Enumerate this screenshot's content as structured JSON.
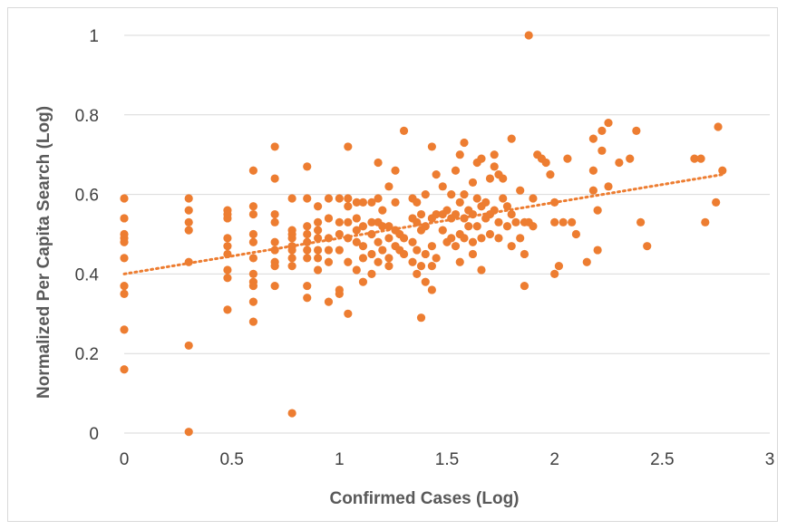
{
  "chart_data": {
    "type": "scatter",
    "title": "",
    "xlabel": "Confirmed Cases (Log)",
    "ylabel": "Normalized Per Capita Search (Log)",
    "xlim": [
      0,
      3
    ],
    "ylim": [
      0,
      1
    ],
    "x_ticks": [
      "0",
      "0.5",
      "1",
      "1.5",
      "2",
      "2.5",
      "3"
    ],
    "y_ticks": [
      "0",
      "0.2",
      "0.4",
      "0.6",
      "0.8",
      "1"
    ],
    "grid": "horizontal",
    "legend": "none",
    "marker_color": "#ED7D31",
    "trendline": {
      "type": "linear",
      "style": "dotted",
      "color": "#ED7D31",
      "start": [
        0,
        0.4
      ],
      "end": [
        2.78,
        0.65
      ]
    },
    "points": [
      [
        0,
        0.59
      ],
      [
        0,
        0.54
      ],
      [
        0,
        0.5
      ],
      [
        0,
        0.49
      ],
      [
        0,
        0.48
      ],
      [
        0,
        0.44
      ],
      [
        0,
        0.37
      ],
      [
        0,
        0.35
      ],
      [
        0,
        0.26
      ],
      [
        0,
        0.16
      ],
      [
        0.3,
        0.59
      ],
      [
        0.3,
        0.56
      ],
      [
        0.3,
        0.53
      ],
      [
        0.3,
        0.51
      ],
      [
        0.3,
        0.43
      ],
      [
        0.3,
        0.22
      ],
      [
        0.3,
        0.003
      ],
      [
        0.48,
        0.56
      ],
      [
        0.48,
        0.55
      ],
      [
        0.48,
        0.54
      ],
      [
        0.48,
        0.49
      ],
      [
        0.48,
        0.47
      ],
      [
        0.48,
        0.45
      ],
      [
        0.48,
        0.41
      ],
      [
        0.48,
        0.39
      ],
      [
        0.48,
        0.31
      ],
      [
        0.6,
        0.66
      ],
      [
        0.6,
        0.57
      ],
      [
        0.6,
        0.55
      ],
      [
        0.6,
        0.5
      ],
      [
        0.6,
        0.48
      ],
      [
        0.6,
        0.44
      ],
      [
        0.6,
        0.4
      ],
      [
        0.6,
        0.38
      ],
      [
        0.6,
        0.37
      ],
      [
        0.6,
        0.33
      ],
      [
        0.6,
        0.28
      ],
      [
        0.7,
        0.72
      ],
      [
        0.7,
        0.64
      ],
      [
        0.7,
        0.55
      ],
      [
        0.7,
        0.53
      ],
      [
        0.7,
        0.48
      ],
      [
        0.7,
        0.46
      ],
      [
        0.7,
        0.43
      ],
      [
        0.7,
        0.42
      ],
      [
        0.7,
        0.37
      ],
      [
        0.78,
        0.59
      ],
      [
        0.78,
        0.51
      ],
      [
        0.78,
        0.5
      ],
      [
        0.78,
        0.49
      ],
      [
        0.78,
        0.47
      ],
      [
        0.78,
        0.46
      ],
      [
        0.78,
        0.44
      ],
      [
        0.78,
        0.42
      ],
      [
        0.78,
        0.05
      ],
      [
        0.85,
        0.67
      ],
      [
        0.85,
        0.59
      ],
      [
        0.85,
        0.52
      ],
      [
        0.85,
        0.5
      ],
      [
        0.85,
        0.48
      ],
      [
        0.85,
        0.46
      ],
      [
        0.85,
        0.44
      ],
      [
        0.85,
        0.37
      ],
      [
        0.85,
        0.34
      ],
      [
        0.9,
        0.57
      ],
      [
        0.9,
        0.53
      ],
      [
        0.9,
        0.51
      ],
      [
        0.9,
        0.49
      ],
      [
        0.9,
        0.46
      ],
      [
        0.9,
        0.44
      ],
      [
        0.9,
        0.41
      ],
      [
        0.95,
        0.59
      ],
      [
        0.95,
        0.54
      ],
      [
        0.95,
        0.49
      ],
      [
        0.95,
        0.46
      ],
      [
        0.95,
        0.43
      ],
      [
        0.95,
        0.33
      ],
      [
        1.0,
        0.59
      ],
      [
        1.0,
        0.53
      ],
      [
        1.0,
        0.5
      ],
      [
        1.0,
        0.46
      ],
      [
        1.0,
        0.36
      ],
      [
        1.0,
        0.35
      ],
      [
        1.04,
        0.72
      ],
      [
        1.04,
        0.59
      ],
      [
        1.04,
        0.57
      ],
      [
        1.04,
        0.53
      ],
      [
        1.04,
        0.49
      ],
      [
        1.04,
        0.43
      ],
      [
        1.04,
        0.3
      ],
      [
        1.08,
        0.58
      ],
      [
        1.08,
        0.54
      ],
      [
        1.08,
        0.51
      ],
      [
        1.08,
        0.48
      ],
      [
        1.08,
        0.41
      ],
      [
        1.11,
        0.58
      ],
      [
        1.11,
        0.52
      ],
      [
        1.11,
        0.47
      ],
      [
        1.11,
        0.44
      ],
      [
        1.11,
        0.38
      ],
      [
        1.15,
        0.58
      ],
      [
        1.15,
        0.53
      ],
      [
        1.15,
        0.5
      ],
      [
        1.15,
        0.45
      ],
      [
        1.15,
        0.4
      ],
      [
        1.18,
        0.68
      ],
      [
        1.18,
        0.59
      ],
      [
        1.18,
        0.53
      ],
      [
        1.18,
        0.48
      ],
      [
        1.18,
        0.43
      ],
      [
        1.2,
        0.56
      ],
      [
        1.2,
        0.52
      ],
      [
        1.2,
        0.46
      ],
      [
        1.23,
        0.62
      ],
      [
        1.23,
        0.52
      ],
      [
        1.23,
        0.49
      ],
      [
        1.23,
        0.44
      ],
      [
        1.23,
        0.42
      ],
      [
        1.26,
        0.66
      ],
      [
        1.26,
        0.58
      ],
      [
        1.26,
        0.51
      ],
      [
        1.26,
        0.47
      ],
      [
        1.28,
        0.5
      ],
      [
        1.28,
        0.46
      ],
      [
        1.3,
        0.76
      ],
      [
        1.3,
        0.49
      ],
      [
        1.3,
        0.45
      ],
      [
        1.34,
        0.59
      ],
      [
        1.34,
        0.54
      ],
      [
        1.34,
        0.48
      ],
      [
        1.34,
        0.43
      ],
      [
        1.36,
        0.58
      ],
      [
        1.36,
        0.53
      ],
      [
        1.36,
        0.46
      ],
      [
        1.36,
        0.4
      ],
      [
        1.38,
        0.55
      ],
      [
        1.38,
        0.51
      ],
      [
        1.38,
        0.42
      ],
      [
        1.38,
        0.29
      ],
      [
        1.4,
        0.6
      ],
      [
        1.4,
        0.52
      ],
      [
        1.4,
        0.45
      ],
      [
        1.4,
        0.38
      ],
      [
        1.43,
        0.72
      ],
      [
        1.43,
        0.54
      ],
      [
        1.43,
        0.47
      ],
      [
        1.43,
        0.42
      ],
      [
        1.43,
        0.36
      ],
      [
        1.45,
        0.65
      ],
      [
        1.45,
        0.55
      ],
      [
        1.45,
        0.44
      ],
      [
        1.48,
        0.62
      ],
      [
        1.48,
        0.55
      ],
      [
        1.48,
        0.51
      ],
      [
        1.5,
        0.56
      ],
      [
        1.5,
        0.48
      ],
      [
        1.52,
        0.6
      ],
      [
        1.52,
        0.54
      ],
      [
        1.52,
        0.49
      ],
      [
        1.54,
        0.66
      ],
      [
        1.54,
        0.55
      ],
      [
        1.54,
        0.47
      ],
      [
        1.56,
        0.7
      ],
      [
        1.56,
        0.58
      ],
      [
        1.56,
        0.5
      ],
      [
        1.56,
        0.43
      ],
      [
        1.58,
        0.73
      ],
      [
        1.58,
        0.6
      ],
      [
        1.58,
        0.54
      ],
      [
        1.58,
        0.49
      ],
      [
        1.6,
        0.56
      ],
      [
        1.6,
        0.52
      ],
      [
        1.62,
        0.63
      ],
      [
        1.62,
        0.55
      ],
      [
        1.62,
        0.48
      ],
      [
        1.62,
        0.45
      ],
      [
        1.64,
        0.68
      ],
      [
        1.64,
        0.59
      ],
      [
        1.64,
        0.52
      ],
      [
        1.66,
        0.69
      ],
      [
        1.66,
        0.57
      ],
      [
        1.66,
        0.49
      ],
      [
        1.66,
        0.41
      ],
      [
        1.68,
        0.58
      ],
      [
        1.68,
        0.54
      ],
      [
        1.7,
        0.64
      ],
      [
        1.7,
        0.55
      ],
      [
        1.7,
        0.5
      ],
      [
        1.72,
        0.7
      ],
      [
        1.72,
        0.67
      ],
      [
        1.72,
        0.56
      ],
      [
        1.74,
        0.65
      ],
      [
        1.74,
        0.53
      ],
      [
        1.74,
        0.49
      ],
      [
        1.76,
        0.64
      ],
      [
        1.76,
        0.59
      ],
      [
        1.78,
        0.57
      ],
      [
        1.78,
        0.52
      ],
      [
        1.8,
        0.74
      ],
      [
        1.8,
        0.55
      ],
      [
        1.8,
        0.47
      ],
      [
        1.82,
        0.53
      ],
      [
        1.84,
        0.61
      ],
      [
        1.84,
        0.49
      ],
      [
        1.86,
        0.53
      ],
      [
        1.86,
        0.45
      ],
      [
        1.86,
        0.37
      ],
      [
        1.88,
        1.0
      ],
      [
        1.88,
        0.53
      ],
      [
        1.9,
        0.59
      ],
      [
        1.9,
        0.52
      ],
      [
        1.92,
        0.7
      ],
      [
        1.94,
        0.69
      ],
      [
        1.96,
        0.68
      ],
      [
        1.98,
        0.65
      ],
      [
        2.0,
        0.58
      ],
      [
        2.0,
        0.53
      ],
      [
        2.0,
        0.4
      ],
      [
        2.02,
        0.42
      ],
      [
        2.04,
        0.53
      ],
      [
        2.06,
        0.69
      ],
      [
        2.08,
        0.53
      ],
      [
        2.1,
        0.5
      ],
      [
        2.15,
        0.43
      ],
      [
        2.18,
        0.74
      ],
      [
        2.18,
        0.66
      ],
      [
        2.18,
        0.61
      ],
      [
        2.2,
        0.56
      ],
      [
        2.2,
        0.46
      ],
      [
        2.22,
        0.76
      ],
      [
        2.22,
        0.71
      ],
      [
        2.25,
        0.78
      ],
      [
        2.25,
        0.62
      ],
      [
        2.3,
        0.68
      ],
      [
        2.35,
        0.69
      ],
      [
        2.38,
        0.76
      ],
      [
        2.4,
        0.53
      ],
      [
        2.43,
        0.47
      ],
      [
        2.65,
        0.69
      ],
      [
        2.68,
        0.69
      ],
      [
        2.7,
        0.53
      ],
      [
        2.75,
        0.58
      ],
      [
        2.76,
        0.77
      ],
      [
        2.78,
        0.66
      ]
    ]
  }
}
